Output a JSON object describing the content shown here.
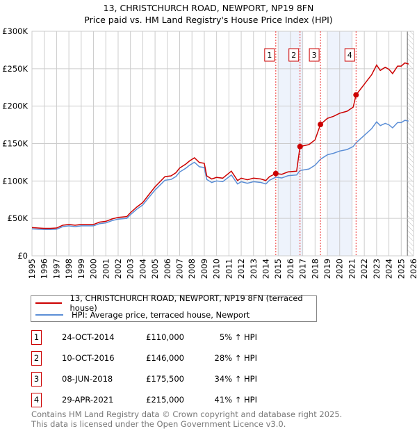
{
  "title": "13, CHRISTCHURCH ROAD, NEWPORT, NP19 8FN",
  "subtitle": "Price paid vs. HM Land Registry's House Price Index (HPI)",
  "chart_data": {
    "type": "line",
    "xlim": [
      1995,
      2026
    ],
    "ylim": [
      0,
      300000
    ],
    "x_ticks": [
      "1995",
      "1996",
      "1997",
      "1998",
      "1999",
      "2000",
      "2001",
      "2002",
      "2003",
      "2004",
      "2005",
      "2006",
      "2007",
      "2008",
      "2009",
      "2010",
      "2011",
      "2012",
      "2013",
      "2014",
      "2015",
      "2016",
      "2017",
      "2018",
      "2019",
      "2020",
      "2021",
      "2022",
      "2023",
      "2024",
      "2025",
      "2026"
    ],
    "y_ticks": [
      {
        "v": 0,
        "label": "£0"
      },
      {
        "v": 50000,
        "label": "£50K"
      },
      {
        "v": 100000,
        "label": "£100K"
      },
      {
        "v": 150000,
        "label": "£150K"
      },
      {
        "v": 200000,
        "label": "£200K"
      },
      {
        "v": 250000,
        "label": "£250K"
      },
      {
        "v": 300000,
        "label": "£300K"
      }
    ],
    "grid": true,
    "shaded_ranges": [
      [
        2015,
        2017
      ],
      [
        2019,
        2021
      ]
    ],
    "projection_from": 2025.5,
    "series": [
      {
        "name": "13, CHRISTCHURCH ROAD, NEWPORT, NP19 8FN (terraced house)",
        "color": "#cc0000",
        "derived": "price paid indexed by HPI"
      },
      {
        "name": "HPI: Average price, terraced house, Newport",
        "color": "#5b8ed6",
        "points": [
          [
            1995,
            36
          ],
          [
            1995.5,
            35.5
          ],
          [
            1996,
            35
          ],
          [
            1996.5,
            35
          ],
          [
            1997,
            35.5
          ],
          [
            1997.5,
            39
          ],
          [
            1998,
            40
          ],
          [
            1998.5,
            39
          ],
          [
            1999,
            40
          ],
          [
            1999.5,
            40
          ],
          [
            2000,
            40
          ],
          [
            2000.5,
            43
          ],
          [
            2001,
            44
          ],
          [
            2001.5,
            47
          ],
          [
            2002,
            49
          ],
          [
            2002.7,
            50
          ],
          [
            2003,
            55
          ],
          [
            2003.5,
            62
          ],
          [
            2004,
            68
          ],
          [
            2004.5,
            78
          ],
          [
            2005,
            88
          ],
          [
            2005.8,
            101
          ],
          [
            2006.3,
            102
          ],
          [
            2006.7,
            106
          ],
          [
            2007,
            112
          ],
          [
            2007.5,
            117
          ],
          [
            2007.8,
            121
          ],
          [
            2008.2,
            125
          ],
          [
            2008.6,
            119
          ],
          [
            2009,
            118
          ],
          [
            2009.2,
            102
          ],
          [
            2009.6,
            98
          ],
          [
            2010,
            100
          ],
          [
            2010.5,
            99
          ],
          [
            2011.2,
            108
          ],
          [
            2011.7,
            96
          ],
          [
            2012,
            99
          ],
          [
            2012.5,
            97
          ],
          [
            2013,
            99
          ],
          [
            2013.6,
            98
          ],
          [
            2014,
            96
          ],
          [
            2014.3,
            101
          ],
          [
            2014.81,
            105
          ],
          [
            2015.3,
            104
          ],
          [
            2015.8,
            107
          ],
          [
            2016.5,
            108
          ],
          [
            2016.78,
            114
          ],
          [
            2017.5,
            116
          ],
          [
            2018,
            121
          ],
          [
            2018.44,
            129
          ],
          [
            2019,
            135
          ],
          [
            2019.5,
            137
          ],
          [
            2020,
            140
          ],
          [
            2020.6,
            142
          ],
          [
            2021.1,
            146
          ],
          [
            2021.33,
            151
          ],
          [
            2022,
            161
          ],
          [
            2022.6,
            170
          ],
          [
            2023,
            179
          ],
          [
            2023.3,
            174
          ],
          [
            2023.7,
            177
          ],
          [
            2024,
            175
          ],
          [
            2024.3,
            171
          ],
          [
            2024.7,
            178
          ],
          [
            2025,
            178
          ],
          [
            2025.3,
            181
          ],
          [
            2025.6,
            180
          ]
        ],
        "unit": "£K"
      }
    ],
    "sales": [
      {
        "n": "1",
        "x": 2014.81,
        "date": "24-OCT-2014",
        "price": 110000,
        "price_label": "£110,000",
        "hpi": "5% ↑ HPI"
      },
      {
        "n": "2",
        "x": 2016.78,
        "date": "10-OCT-2016",
        "price": 146000,
        "price_label": "£146,000",
        "hpi": "28% ↑ HPI"
      },
      {
        "n": "3",
        "x": 2018.44,
        "date": "08-JUN-2018",
        "price": 175500,
        "price_label": "£175,500",
        "hpi": "34% ↑ HPI"
      },
      {
        "n": "4",
        "x": 2021.33,
        "date": "29-APR-2021",
        "price": 215000,
        "price_label": "£215,000",
        "hpi": "41% ↑ HPI"
      }
    ]
  },
  "legend": {
    "property": "13, CHRISTCHURCH ROAD, NEWPORT, NP19 8FN (terraced house)",
    "hpi": "HPI: Average price, terraced house, Newport"
  },
  "footer": {
    "line1": "Contains HM Land Registry data © Crown copyright and database right 2025.",
    "line2": "This data is licensed under the Open Government Licence v3.0."
  }
}
